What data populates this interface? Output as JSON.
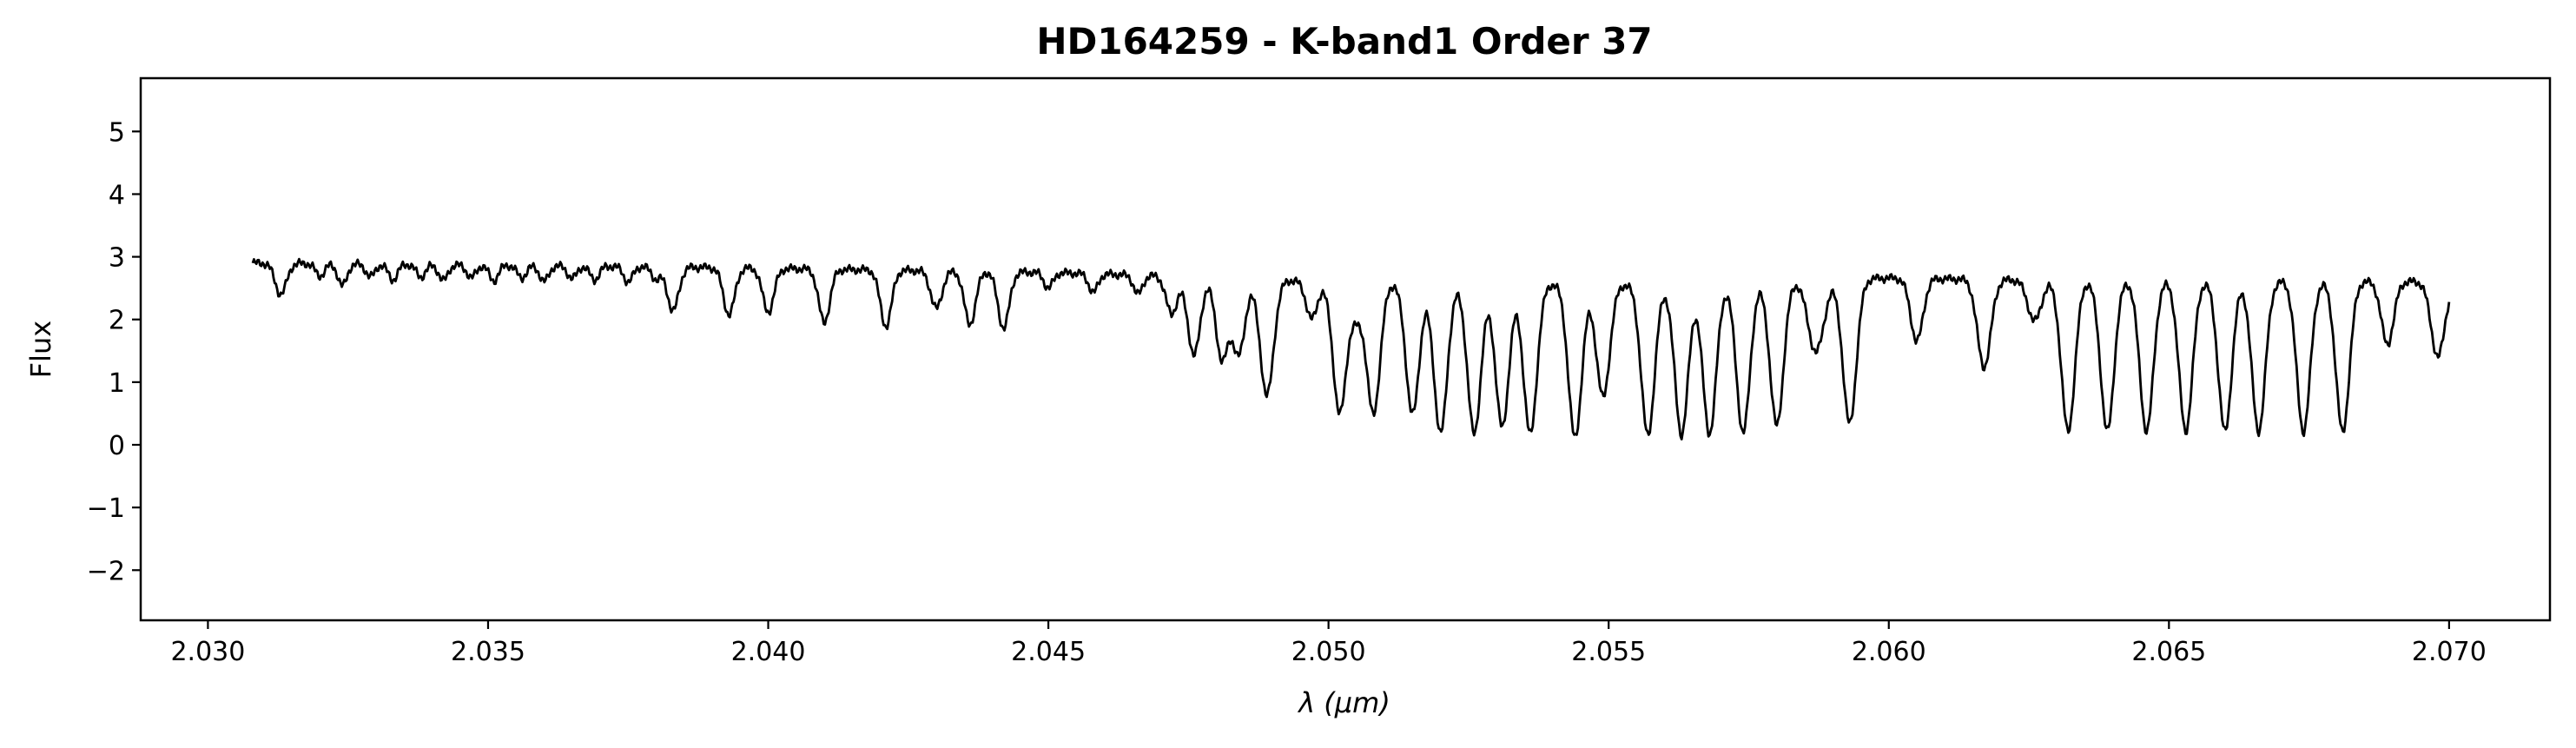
{
  "chart_data": {
    "type": "line",
    "title": "HD164259 - K-band1 Order 37",
    "xlabel": "λ (μm)",
    "ylabel": "Flux",
    "xlim": [
      2.0288,
      2.0718
    ],
    "ylim": [
      -2.8,
      5.85
    ],
    "xticks": [
      2.03,
      2.035,
      2.04,
      2.045,
      2.05,
      2.055,
      2.06,
      2.065,
      2.07
    ],
    "xtick_labels": [
      "2.030",
      "2.035",
      "2.040",
      "2.045",
      "2.050",
      "2.055",
      "2.060",
      "2.065",
      "2.070"
    ],
    "yticks": [
      -2,
      -1,
      0,
      1,
      2,
      3,
      4,
      5
    ],
    "ytick_labels": [
      "−2",
      "−1",
      "0",
      "1",
      "2",
      "3",
      "4",
      "5"
    ],
    "grid": false,
    "series": [
      {
        "color": "#000000",
        "x_start": 2.0308,
        "x_end": 2.07,
        "continuum": [
          [
            2.0308,
            2.9
          ],
          [
            2.038,
            2.84
          ],
          [
            2.045,
            2.75
          ],
          [
            2.0475,
            2.68
          ],
          [
            2.05,
            2.6
          ],
          [
            2.056,
            2.55
          ],
          [
            2.06,
            2.66
          ],
          [
            2.063,
            2.62
          ],
          [
            2.07,
            2.6
          ]
        ],
        "absorption_lines": [
          [
            2.0313,
            0.5,
            0.0001
          ],
          [
            2.032,
            0.2,
            8e-05
          ],
          [
            2.0324,
            0.35,
            8e-05
          ],
          [
            2.0329,
            0.2,
            8e-05
          ],
          [
            2.0333,
            0.25,
            8e-05
          ],
          [
            2.0338,
            0.2,
            8e-05
          ],
          [
            2.0342,
            0.25,
            8e-05
          ],
          [
            2.0347,
            0.2,
            8e-05
          ],
          [
            2.0351,
            0.25,
            8e-05
          ],
          [
            2.0356,
            0.2,
            8e-05
          ],
          [
            2.036,
            0.25,
            8e-05
          ],
          [
            2.0365,
            0.2,
            8e-05
          ],
          [
            2.0369,
            0.22,
            8e-05
          ],
          [
            2.0375,
            0.25,
            8e-05
          ],
          [
            2.038,
            0.2,
            8e-05
          ],
          [
            2.0383,
            0.7,
            0.0001
          ],
          [
            2.0393,
            0.75,
            0.0001
          ],
          [
            2.04,
            0.7,
            0.0001
          ],
          [
            2.041,
            0.85,
            0.0001
          ],
          [
            2.0421,
            0.9,
            0.0001
          ],
          [
            2.043,
            0.6,
            0.0001
          ],
          [
            2.0436,
            0.85,
            0.0001
          ],
          [
            2.0442,
            0.9,
            0.0001
          ],
          [
            2.045,
            0.25,
            8e-05
          ],
          [
            2.0458,
            0.3,
            8e-05
          ],
          [
            2.0466,
            0.3,
            8e-05
          ],
          [
            2.0472,
            0.6,
            0.0001
          ],
          [
            2.0476,
            1.25,
            0.00011
          ],
          [
            2.0481,
            1.3,
            0.00011
          ],
          [
            2.0484,
            1.2,
            0.00011
          ],
          [
            2.0489,
            1.85,
            0.00012
          ],
          [
            2.0497,
            0.6,
            0.0001
          ],
          [
            2.0502,
            2.1,
            0.00012
          ],
          [
            2.0505,
            0.5,
            0.0001
          ],
          [
            2.0508,
            2.1,
            0.00012
          ],
          [
            2.0515,
            2.1,
            0.00012
          ],
          [
            2.052,
            2.4,
            0.00012
          ],
          [
            2.0526,
            2.4,
            0.00012
          ],
          [
            2.0531,
            2.3,
            0.00012
          ],
          [
            2.0536,
            2.4,
            0.00012
          ],
          [
            2.0544,
            2.45,
            0.00012
          ],
          [
            2.0549,
            1.8,
            0.00012
          ],
          [
            2.0557,
            2.4,
            0.00012
          ],
          [
            2.0563,
            2.4,
            0.00012
          ],
          [
            2.0568,
            2.4,
            0.00012
          ],
          [
            2.0574,
            2.4,
            0.00012
          ],
          [
            2.058,
            2.3,
            0.00012
          ],
          [
            2.0587,
            1.15,
            0.00014
          ],
          [
            2.0593,
            2.3,
            0.00012
          ],
          [
            2.0605,
            1.0,
            0.00011
          ],
          [
            2.0617,
            1.4,
            0.00012
          ],
          [
            2.0626,
            0.65,
            0.00012
          ],
          [
            2.0632,
            2.4,
            0.00012
          ],
          [
            2.0639,
            2.4,
            0.00012
          ],
          [
            2.0646,
            2.4,
            0.00012
          ],
          [
            2.0653,
            2.4,
            0.00012
          ],
          [
            2.066,
            2.4,
            0.00012
          ],
          [
            2.0666,
            2.4,
            0.00012
          ],
          [
            2.0674,
            2.4,
            0.00012
          ],
          [
            2.0681,
            2.4,
            0.00012
          ],
          [
            2.0689,
            1.0,
            0.00011
          ],
          [
            2.0698,
            1.2,
            0.00012
          ]
        ]
      }
    ]
  }
}
